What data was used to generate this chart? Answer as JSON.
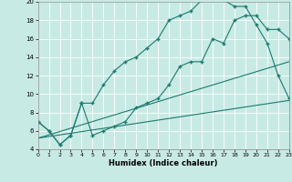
{
  "xlabel": "Humidex (Indice chaleur)",
  "background_color": "#c8eae4",
  "grid_color": "#ffffff",
  "line_color": "#1a7a6e",
  "xlim": [
    0,
    23
  ],
  "ylim": [
    4,
    20
  ],
  "line1_x": [
    0,
    1,
    2,
    3,
    4,
    5,
    6,
    7,
    8,
    9,
    10,
    11,
    12,
    13,
    14,
    15,
    16,
    17,
    18,
    19,
    20,
    21,
    22,
    23
  ],
  "line1_y": [
    7,
    6,
    4.5,
    5.5,
    9,
    5.5,
    6,
    6.5,
    7,
    8.5,
    9,
    9.5,
    11,
    13,
    13.5,
    13.5,
    16,
    15.5,
    18,
    18.5,
    18.5,
    17,
    17,
    16
  ],
  "line2_x": [
    0,
    1,
    2,
    3,
    4,
    5,
    6,
    7,
    8,
    9,
    10,
    11,
    12,
    13,
    14,
    15,
    16,
    17,
    18,
    19,
    20,
    21,
    22,
    23
  ],
  "line2_y": [
    7,
    6,
    4.5,
    5.5,
    9,
    9,
    11,
    12.5,
    13.5,
    14,
    15,
    16,
    18,
    18.5,
    19,
    20.2,
    20.2,
    20.2,
    19.5,
    19.5,
    17.5,
    15.5,
    12,
    9.5
  ],
  "line3_x": [
    0,
    23
  ],
  "line3_y": [
    5.2,
    13.5
  ],
  "line4_x": [
    0,
    23
  ],
  "line4_y": [
    5.2,
    9.3
  ],
  "yticks": [
    4,
    6,
    8,
    10,
    12,
    14,
    16,
    18,
    20
  ],
  "xticks": [
    0,
    1,
    2,
    3,
    4,
    5,
    6,
    7,
    8,
    9,
    10,
    11,
    12,
    13,
    14,
    15,
    16,
    17,
    18,
    19,
    20,
    21,
    22,
    23
  ]
}
